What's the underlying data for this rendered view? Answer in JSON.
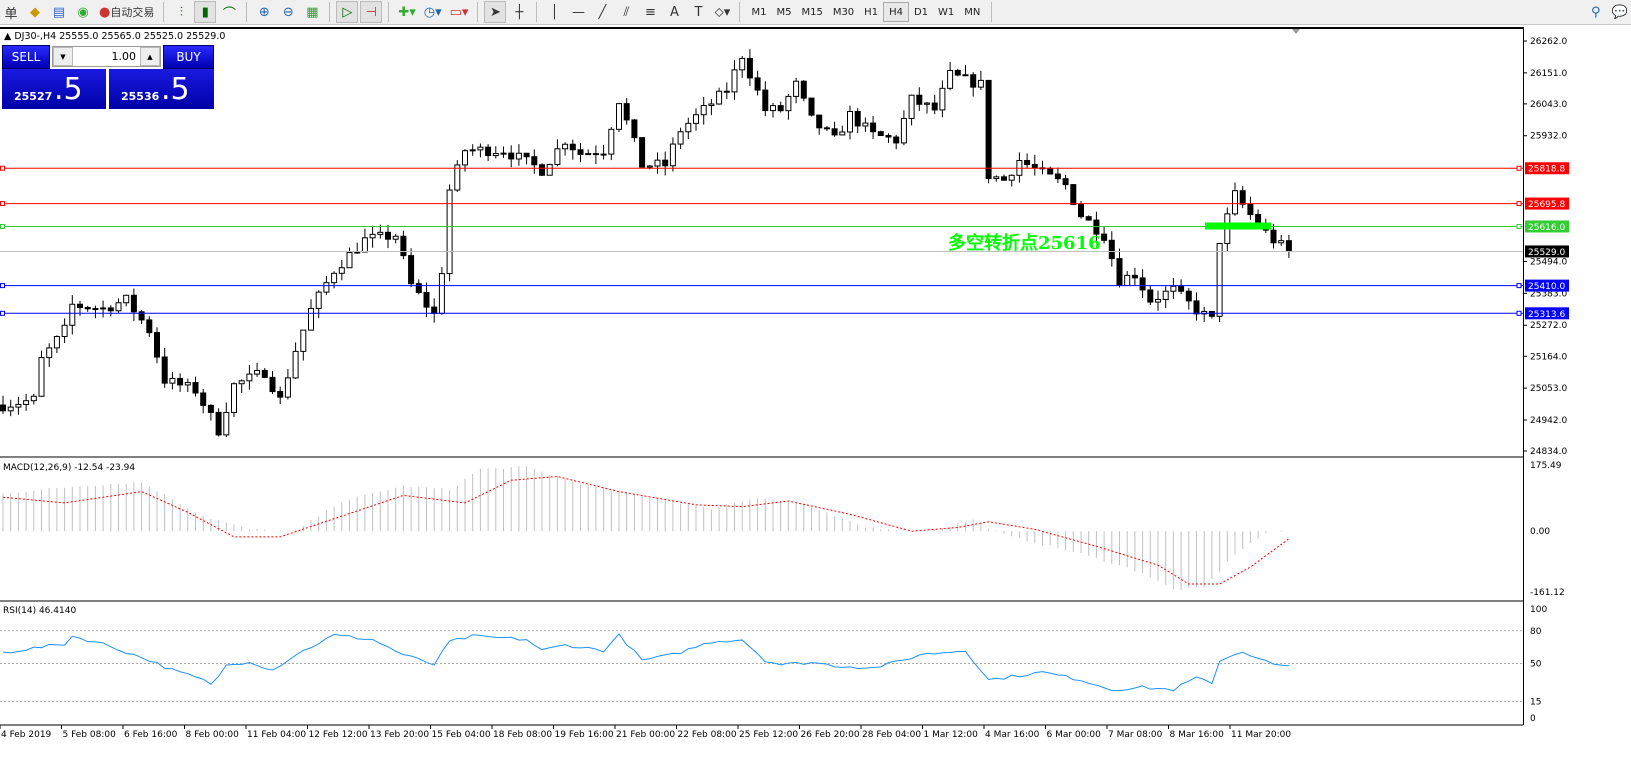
{
  "toolbar": {
    "left_cut_label": "单",
    "autotrade_label": "自动交易",
    "timeframes": [
      "M1",
      "M5",
      "M15",
      "M30",
      "H1",
      "H4",
      "D1",
      "W1",
      "MN"
    ],
    "active_timeframe": "H4"
  },
  "chart": {
    "symbol_info": "DJ30-,H4  25555.0 25565.0 25525.0 25529.0"
  },
  "trade_panel": {
    "sell_label": "SELL",
    "buy_label": "BUY",
    "lot": "1.00",
    "sell_price_small": "25527",
    "sell_price_big": ".5",
    "buy_price_small": "25536",
    "buy_price_big": ".5"
  },
  "annotation": {
    "text": "多空转折点25616",
    "color": "#00ff00"
  },
  "price_axis": {
    "ticks": [
      "26262.0",
      "26151.0",
      "26043.0",
      "25932.0",
      "25494.0",
      "25383.0",
      "25272.0",
      "25164.0",
      "25053.0",
      "24942.0",
      "24834.0"
    ],
    "range": [
      24834,
      26262
    ]
  },
  "hlines": [
    {
      "price": 25818.8,
      "label": "25818.8",
      "color": "#ff0000"
    },
    {
      "price": 25695.8,
      "label": "25695.8",
      "color": "#ff0000"
    },
    {
      "price": 25616.0,
      "label": "25616.0",
      "color": "#33cc33"
    },
    {
      "price": 25529.0,
      "label": "25529.0",
      "color": "#000000",
      "line": "#c0c0c0"
    },
    {
      "price": 25410.0,
      "label": "25410.0",
      "color": "#0000ff"
    },
    {
      "price": 25313.6,
      "label": "25313.6",
      "color": "#0000ff"
    }
  ],
  "time_axis": [
    "4 Feb 2019",
    "5 Feb 08:00",
    "6 Feb 16:00",
    "8 Feb 00:00",
    "11 Feb 04:00",
    "12 Feb 12:00",
    "13 Feb 20:00",
    "15 Feb 04:00",
    "18 Feb 08:00",
    "19 Feb 16:00",
    "21 Feb 00:00",
    "22 Feb 08:00",
    "25 Feb 12:00",
    "26 Feb 20:00",
    "28 Feb 04:00",
    "1 Mar 12:00",
    "4 Mar 16:00",
    "6 Mar 00:00",
    "7 Mar 08:00",
    "8 Mar 16:00",
    "11 Mar 20:00"
  ],
  "chart_data": {
    "type": "candlestick",
    "price_path": [
      [
        0,
        24994
      ],
      [
        4,
        25012
      ],
      [
        5,
        25151
      ],
      [
        8,
        25255
      ],
      [
        9,
        25342
      ],
      [
        13,
        25330
      ],
      [
        16,
        25360
      ],
      [
        19,
        25255
      ],
      [
        21,
        25081
      ],
      [
        25,
        25046
      ],
      [
        28,
        24907
      ],
      [
        30,
        25063
      ],
      [
        34,
        25110
      ],
      [
        36,
        25012
      ],
      [
        38,
        25186
      ],
      [
        40,
        25325
      ],
      [
        43,
        25464
      ],
      [
        47,
        25569
      ],
      [
        51,
        25586
      ],
      [
        53,
        25412
      ],
      [
        56,
        25308
      ],
      [
        57,
        25464
      ],
      [
        58,
        25743
      ],
      [
        60,
        25882
      ],
      [
        65,
        25882
      ],
      [
        70,
        25813
      ],
      [
        73,
        25917
      ],
      [
        75,
        25870
      ],
      [
        78,
        25882
      ],
      [
        80,
        26057
      ],
      [
        83,
        25830
      ],
      [
        86,
        25830
      ],
      [
        88,
        25952
      ],
      [
        91,
        26022
      ],
      [
        94,
        26091
      ],
      [
        96,
        26213
      ],
      [
        99,
        26022
      ],
      [
        101,
        26022
      ],
      [
        103,
        26109
      ],
      [
        105,
        25987
      ],
      [
        108,
        25917
      ],
      [
        110,
        26004
      ],
      [
        113,
        25935
      ],
      [
        116,
        25917
      ],
      [
        118,
        26057
      ],
      [
        121,
        26022
      ],
      [
        123,
        26143
      ],
      [
        127,
        26110
      ],
      [
        128,
        25795
      ],
      [
        130,
        25778
      ],
      [
        132,
        25847
      ],
      [
        135,
        25800
      ],
      [
        138,
        25760
      ],
      [
        140,
        25656
      ],
      [
        143,
        25586
      ],
      [
        145,
        25430
      ],
      [
        147,
        25450
      ],
      [
        149,
        25360
      ],
      [
        152,
        25395
      ],
      [
        155,
        25325
      ],
      [
        157,
        25290
      ],
      [
        158,
        25569
      ],
      [
        160,
        25726
      ],
      [
        163,
        25621
      ],
      [
        165,
        25569
      ],
      [
        167,
        25529
      ]
    ]
  },
  "macd": {
    "label": "MACD(12,26,9) -12.54 -23.94",
    "ticks": [
      "175.49",
      "0.00",
      "-161.12"
    ],
    "range": [
      -161.12,
      175.49
    ],
    "hist_path": [
      [
        0,
        100
      ],
      [
        10,
        120
      ],
      [
        18,
        130
      ],
      [
        26,
        40
      ],
      [
        32,
        5
      ],
      [
        38,
        0
      ],
      [
        44,
        80
      ],
      [
        52,
        120
      ],
      [
        58,
        110
      ],
      [
        62,
        165
      ],
      [
        68,
        170
      ],
      [
        76,
        120
      ],
      [
        84,
        90
      ],
      [
        92,
        60
      ],
      [
        98,
        90
      ],
      [
        104,
        70
      ],
      [
        112,
        10
      ],
      [
        120,
        0
      ],
      [
        126,
        30
      ],
      [
        130,
        -10
      ],
      [
        140,
        -60
      ],
      [
        148,
        -110
      ],
      [
        152,
        -155
      ],
      [
        156,
        -150
      ],
      [
        160,
        -60
      ],
      [
        164,
        -5
      ],
      [
        167,
        0
      ]
    ],
    "signal_path": [
      [
        0,
        90
      ],
      [
        8,
        75
      ],
      [
        18,
        105
      ],
      [
        24,
        50
      ],
      [
        30,
        -15
      ],
      [
        36,
        -15
      ],
      [
        44,
        40
      ],
      [
        52,
        95
      ],
      [
        60,
        75
      ],
      [
        66,
        135
      ],
      [
        72,
        145
      ],
      [
        80,
        105
      ],
      [
        90,
        70
      ],
      [
        96,
        65
      ],
      [
        102,
        80
      ],
      [
        110,
        45
      ],
      [
        118,
        0
      ],
      [
        124,
        10
      ],
      [
        128,
        25
      ],
      [
        134,
        5
      ],
      [
        142,
        -40
      ],
      [
        150,
        -90
      ],
      [
        154,
        -140
      ],
      [
        158,
        -140
      ],
      [
        162,
        -95
      ],
      [
        167,
        -20
      ]
    ]
  },
  "rsi": {
    "label": "RSI(14) 46.4140",
    "ticks": [
      "100",
      "80",
      "50",
      "15",
      "0"
    ],
    "levels": [
      80,
      50,
      15
    ],
    "value_path": [
      [
        0,
        60
      ],
      [
        8,
        68
      ],
      [
        9,
        75
      ],
      [
        13,
        68
      ],
      [
        19,
        53
      ],
      [
        22,
        44
      ],
      [
        26,
        35
      ],
      [
        27,
        30
      ],
      [
        29,
        48
      ],
      [
        32,
        52
      ],
      [
        35,
        44
      ],
      [
        38,
        58
      ],
      [
        43,
        76
      ],
      [
        48,
        72
      ],
      [
        52,
        58
      ],
      [
        56,
        49
      ],
      [
        58,
        70
      ],
      [
        61,
        75
      ],
      [
        68,
        72
      ],
      [
        70,
        62
      ],
      [
        73,
        67
      ],
      [
        78,
        62
      ],
      [
        80,
        76
      ],
      [
        83,
        53
      ],
      [
        87,
        58
      ],
      [
        92,
        70
      ],
      [
        96,
        72
      ],
      [
        99,
        53
      ],
      [
        101,
        49
      ],
      [
        105,
        51
      ],
      [
        108,
        48
      ],
      [
        113,
        46
      ],
      [
        117,
        53
      ],
      [
        119,
        58
      ],
      [
        125,
        62
      ],
      [
        128,
        35
      ],
      [
        130,
        37
      ],
      [
        135,
        42
      ],
      [
        140,
        35
      ],
      [
        144,
        26
      ],
      [
        148,
        28
      ],
      [
        152,
        26
      ],
      [
        155,
        37
      ],
      [
        157,
        31
      ],
      [
        158,
        53
      ],
      [
        161,
        61
      ],
      [
        165,
        49
      ],
      [
        167,
        47
      ]
    ]
  },
  "colors": {
    "bull": "#ffffff",
    "bear": "#000000",
    "macd_hist": "#c0c0c0",
    "macd_signal": "#ff0000",
    "rsi": "#1e90ff"
  }
}
